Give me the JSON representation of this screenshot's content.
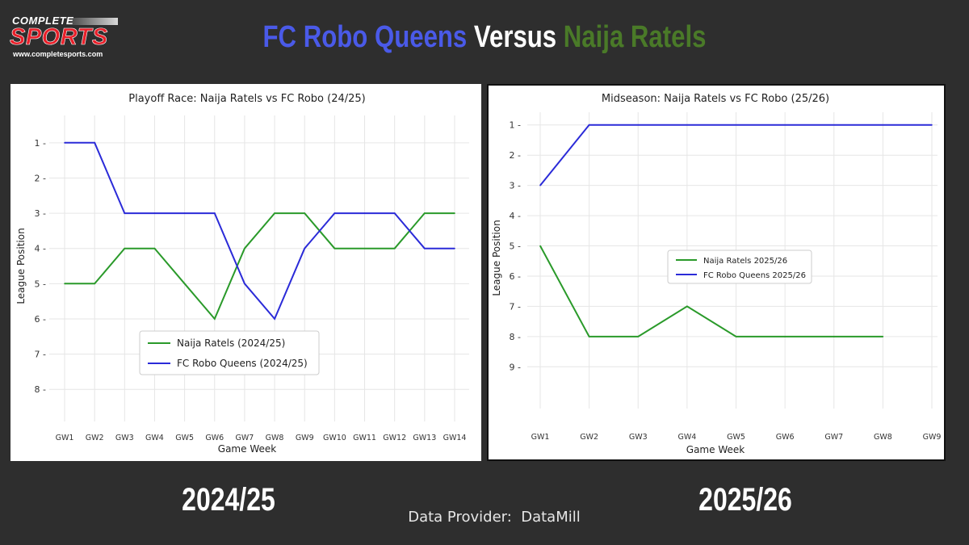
{
  "brand": {
    "line1": "COMPLETE",
    "line2": "SPORTS",
    "line3": "www.completesports.com"
  },
  "headline": {
    "part1": "FC Robo Queens",
    "part2": " Versus ",
    "part3": "Naija Ratels"
  },
  "colors": {
    "background": "#2e2e2e",
    "naija": "#2a9a2a",
    "robo": "#2b2bd8",
    "headline_blue": "#4a5ae8",
    "headline_green": "#4a7a28"
  },
  "season_labels": {
    "left": "2024/25",
    "right": "2025/26"
  },
  "provider": "Data Provider:  DataMill",
  "chart_data": [
    {
      "type": "line",
      "title": "Playoff Race: Naija Ratels vs FC Robo (24/25)",
      "xlabel": "Game Week",
      "ylabel": "League Position",
      "categories": [
        "GW1",
        "GW2",
        "GW3",
        "GW4",
        "GW5",
        "GW6",
        "GW7",
        "GW8",
        "GW9",
        "GW10",
        "GW11",
        "GW12",
        "GW13",
        "GW14"
      ],
      "yticks": [
        1,
        2,
        3,
        4,
        5,
        6,
        7,
        8
      ],
      "ylim": [
        8.5,
        0.5
      ],
      "y_inverted": true,
      "grid": true,
      "legend": "lower-center",
      "series": [
        {
          "name": "Naija Ratels (2024/25)",
          "color": "#2a9a2a",
          "values": [
            5,
            5,
            4,
            4,
            5,
            6,
            4,
            3,
            3,
            4,
            4,
            4,
            3,
            3
          ]
        },
        {
          "name": "FC Robo Queens (2024/25)",
          "color": "#2b2bd8",
          "values": [
            1,
            1,
            3,
            3,
            3,
            3,
            5,
            6,
            4,
            3,
            3,
            3,
            4,
            4
          ]
        }
      ]
    },
    {
      "type": "line",
      "title": "Midseason: Naija Ratels vs FC Robo (25/26)",
      "xlabel": "Game Week",
      "ylabel": "League Position",
      "categories": [
        "GW1",
        "GW2",
        "GW3",
        "GW4",
        "GW5",
        "GW6",
        "GW7",
        "GW8",
        "GW9"
      ],
      "yticks": [
        1,
        2,
        3,
        4,
        5,
        6,
        7,
        8,
        9
      ],
      "ylim": [
        9.9,
        0.9
      ],
      "y_inverted": true,
      "grid": true,
      "legend": "center-left",
      "series": [
        {
          "name": "Naija Ratels 2025/26",
          "color": "#2a9a2a",
          "values": [
            5,
            8,
            8,
            7,
            8,
            8,
            8,
            8,
            null
          ]
        },
        {
          "name": "FC Robo Queens 2025/26",
          "color": "#2b2bd8",
          "values": [
            3,
            1,
            1,
            1,
            1,
            1,
            1,
            1,
            1
          ]
        }
      ]
    }
  ]
}
